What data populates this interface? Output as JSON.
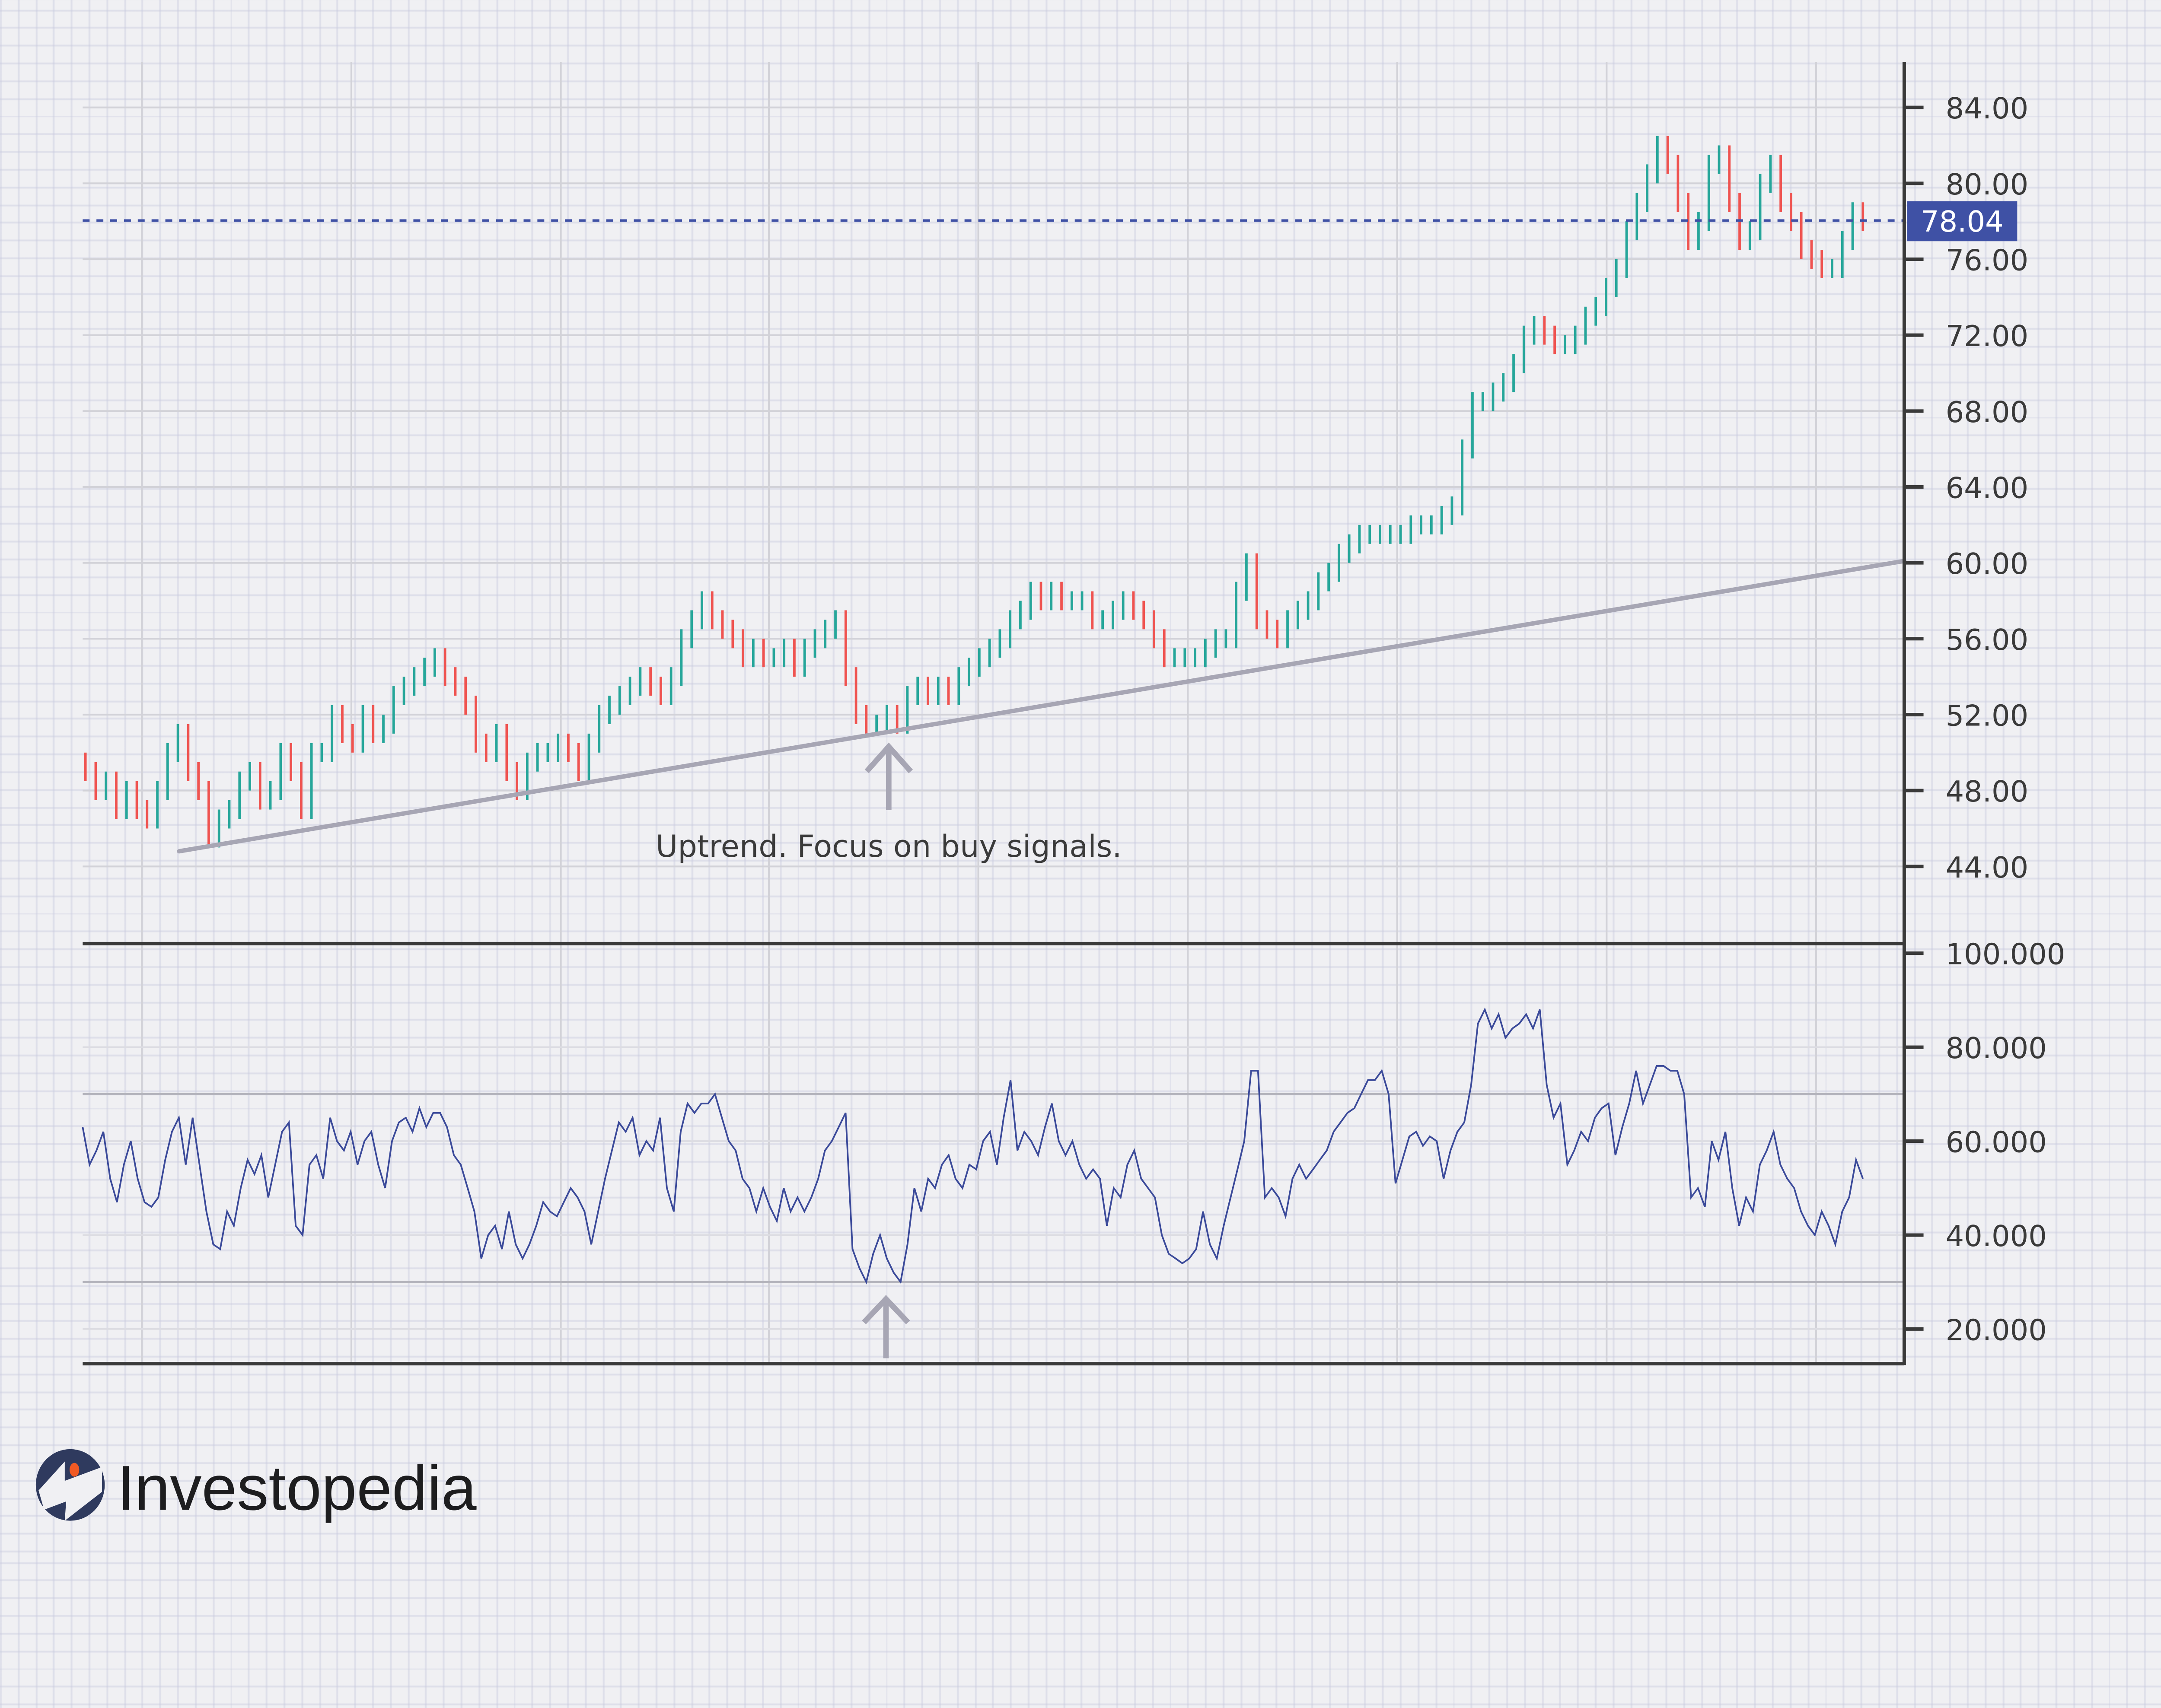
{
  "chart_data": [
    {
      "type": "candlestick",
      "panel": "price",
      "ylim": [
        42,
        86
      ],
      "yticks": [
        "84.00",
        "80.00",
        "76.00",
        "72.00",
        "68.00",
        "64.00",
        "60.00",
        "56.00",
        "52.00",
        "48.00",
        "44.00"
      ],
      "ytick_values": [
        84,
        80,
        76,
        72,
        68,
        64,
        60,
        56,
        52,
        48,
        44
      ],
      "grid": true,
      "colors": {
        "up": "#26a69a",
        "down": "#ef5350",
        "last_price": "#3f51a5",
        "trendline": "#a7a6b4"
      },
      "last_price": {
        "value": 78.04,
        "label": "78.04"
      },
      "trendline": {
        "start": 44.8,
        "end": 60.1
      },
      "annotation": {
        "text": "Uptrend. Focus on buy signals.",
        "arrow": "up"
      },
      "closes": [
        49,
        48,
        48.5,
        47,
        48,
        47,
        46.5,
        48,
        50,
        51,
        49,
        48,
        45.5,
        46.5,
        47,
        48.5,
        49,
        47.5,
        48,
        50,
        49,
        47,
        50,
        50,
        52,
        51,
        50.5,
        52,
        51,
        51.5,
        53,
        53.5,
        54,
        54.5,
        55,
        54,
        53.5,
        52.5,
        50.5,
        50,
        51,
        49,
        48,
        49.5,
        50,
        50,
        50.5,
        50,
        49,
        50.5,
        52,
        52.5,
        53,
        53.5,
        54,
        53.5,
        53,
        54,
        56,
        57,
        58,
        57,
        56.5,
        56,
        55,
        55.5,
        55,
        55,
        55.5,
        54.5,
        55.5,
        56,
        56.5,
        57,
        54,
        52,
        51.5,
        51.5,
        52,
        51.5,
        53,
        53.5,
        53,
        53.5,
        53,
        54,
        54.5,
        55,
        55.5,
        56,
        57,
        57.5,
        58.5,
        58,
        58.5,
        58,
        58,
        58,
        57,
        57,
        57.5,
        58,
        57.5,
        57,
        56,
        55,
        55,
        55,
        55,
        55.5,
        56,
        56,
        58.5,
        60,
        57,
        56.5,
        56,
        57,
        57.5,
        58,
        59,
        59.5,
        60.5,
        61,
        61.5,
        61.5,
        61.5,
        61.5,
        61.5,
        62,
        62,
        62,
        62.5,
        63,
        66,
        68.5,
        68.5,
        69,
        69.5,
        70.5,
        72,
        72.5,
        72,
        71.5,
        71.5,
        72,
        73,
        73.5,
        74.5,
        75.5,
        77.5,
        79,
        80.5,
        82,
        81,
        79,
        77,
        78,
        81,
        81.5,
        79,
        77,
        77.5,
        80,
        81,
        79,
        78,
        76.5,
        76,
        75.5,
        75.5,
        77,
        78.5,
        78
      ]
    },
    {
      "type": "line",
      "panel": "oscillator",
      "ylim": [
        10,
        102
      ],
      "yticks": [
        "100.000",
        "80.000",
        "60.000",
        "40.000",
        "20.000"
      ],
      "ytick_values": [
        100,
        80,
        60,
        40,
        20
      ],
      "reference_lines": [
        70,
        30
      ],
      "color": "#3b4a9a",
      "annotation": {
        "arrow": "up"
      },
      "values": [
        63,
        55,
        58,
        62,
        52,
        47,
        55,
        60,
        52,
        47,
        46,
        48,
        56,
        62,
        65,
        55,
        65,
        55,
        45,
        38,
        37,
        45,
        42,
        50,
        56,
        53,
        57,
        48,
        55,
        62,
        64,
        42,
        40,
        55,
        57,
        52,
        65,
        60,
        58,
        62,
        55,
        60,
        62,
        55,
        50,
        60,
        64,
        65,
        62,
        67,
        63,
        66,
        66,
        63,
        57,
        55,
        50,
        45,
        35,
        40,
        42,
        37,
        45,
        38,
        35,
        38,
        42,
        47,
        45,
        44,
        47,
        50,
        48,
        45,
        38,
        45,
        52,
        58,
        64,
        62,
        65,
        57,
        60,
        58,
        65,
        50,
        45,
        62,
        68,
        66,
        68,
        68,
        70,
        65,
        60,
        58,
        52,
        50,
        45,
        50,
        46,
        43,
        50,
        45,
        48,
        45,
        48,
        52,
        58,
        60,
        63,
        66,
        37,
        33,
        30,
        36,
        40,
        35,
        32,
        30,
        38,
        50,
        45,
        52,
        50,
        55,
        57,
        52,
        50,
        55,
        54,
        60,
        62,
        55,
        65,
        73,
        58,
        62,
        60,
        57,
        63,
        68,
        60,
        57,
        60,
        55,
        52,
        54,
        52,
        42,
        50,
        48,
        55,
        58,
        52,
        50,
        48,
        40,
        36,
        35,
        34,
        35,
        37,
        45,
        38,
        35,
        42,
        48,
        54,
        60,
        75,
        75,
        48,
        50,
        48,
        44,
        52,
        55,
        52,
        54,
        56,
        58,
        62,
        64,
        66,
        67,
        70,
        73,
        73,
        75,
        70,
        51,
        56,
        61,
        62,
        59,
        61,
        60,
        52,
        58,
        62,
        64,
        72,
        85,
        88,
        84,
        87,
        82,
        84,
        85,
        87,
        84,
        88,
        72,
        65,
        68,
        55,
        58,
        62,
        60,
        65,
        67,
        68,
        57,
        63,
        68,
        75,
        68,
        72,
        76,
        76,
        75,
        75,
        70,
        48,
        50,
        46,
        60,
        56,
        62,
        50,
        42,
        48,
        45,
        55,
        58,
        62,
        55,
        52,
        50,
        45,
        42,
        40,
        45,
        42,
        38,
        45,
        48,
        56,
        52
      ]
    }
  ],
  "brand": {
    "name": "Investopedia",
    "colors": {
      "navy": "#2f3a5e",
      "accent": "#f15a24"
    }
  }
}
